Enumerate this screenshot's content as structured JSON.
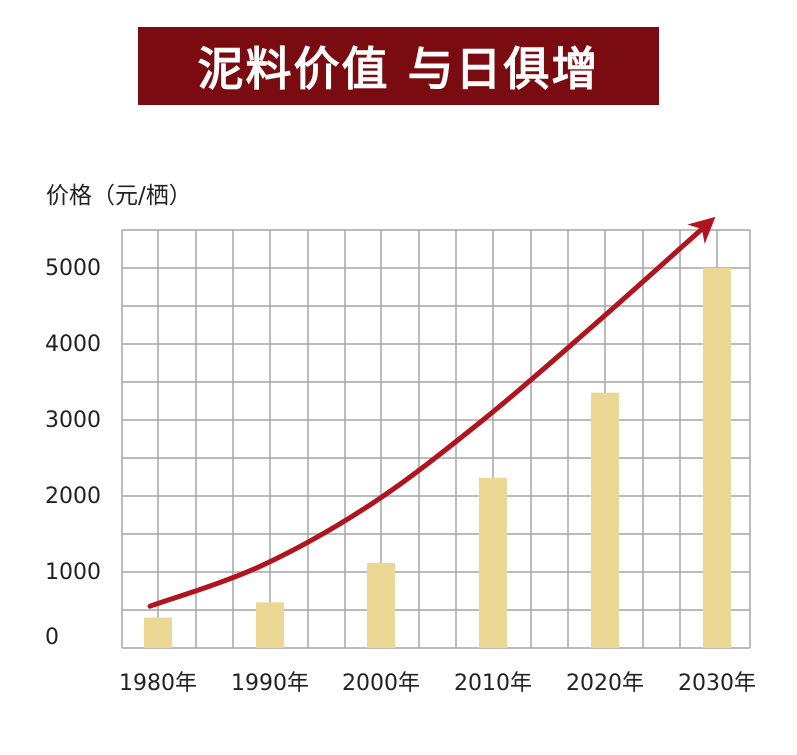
{
  "title": "泥料价值 与日俱增",
  "colors": {
    "banner": "#7a0b10",
    "bar": "#ecd795",
    "arrow": "#b0141e",
    "grid": "#a6a6a6"
  },
  "chart_data": {
    "type": "bar",
    "title": "泥料价值 与日俱增",
    "xlabel": "",
    "ylabel": "价格（元/栖）",
    "categories": [
      "1980年",
      "1990年",
      "2000年",
      "2010年",
      "2020年",
      "2030年"
    ],
    "values": [
      400,
      600,
      1120,
      2240,
      3360,
      5000
    ],
    "ylim": [
      0,
      5500
    ],
    "yticks": [
      0,
      1000,
      2000,
      3000,
      4000,
      5000
    ],
    "grid": true,
    "trend_arrow": {
      "description": "rising curved arrow",
      "points": [
        [
          1980,
          550
        ],
        [
          1990,
          1080
        ],
        [
          2000,
          1900
        ],
        [
          2010,
          3000
        ],
        [
          2020,
          4250
        ],
        [
          2030,
          5550
        ]
      ]
    }
  }
}
